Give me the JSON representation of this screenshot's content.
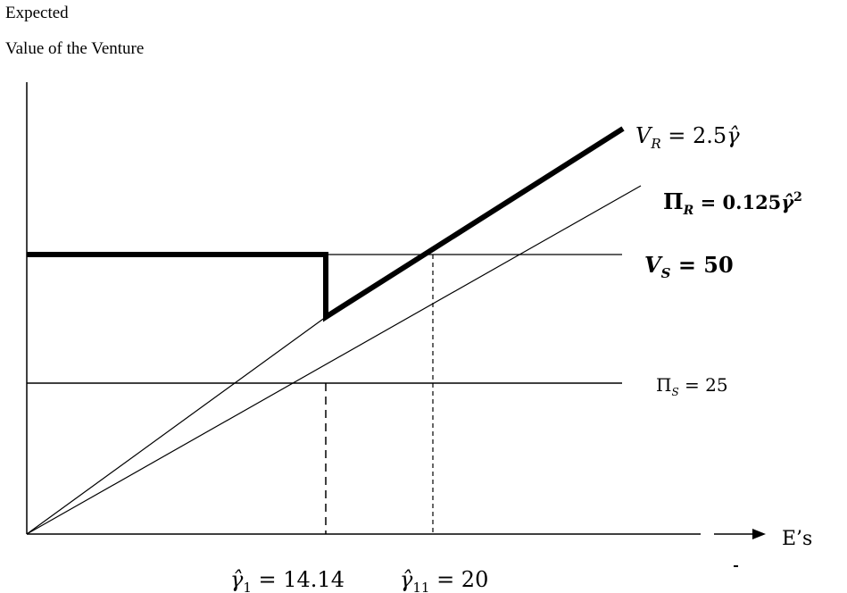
{
  "y_axis_label": {
    "line1": "Expected",
    "line2": "Value of the Venture"
  },
  "x_axis_label": "E’s",
  "labels": {
    "vr": {
      "var": "V",
      "sub": "R",
      "eq": " = 2.5",
      "hat": "γ̂"
    },
    "pir": {
      "var": "Π",
      "sub": "R",
      "eq": " = 0.125",
      "hat": "γ̂",
      "sup": "2"
    },
    "vs": {
      "var": "V",
      "sub": "S",
      "eq": " = 50"
    },
    "pis": {
      "var": "Π",
      "sub": "S",
      "eq": " = 25"
    },
    "gamma1": {
      "hat": "γ̂",
      "sub": "1",
      "eq": " = 14.14"
    },
    "gamma11": {
      "hat": "γ̂",
      "sub": "11",
      "eq": " = 20"
    }
  }
}
